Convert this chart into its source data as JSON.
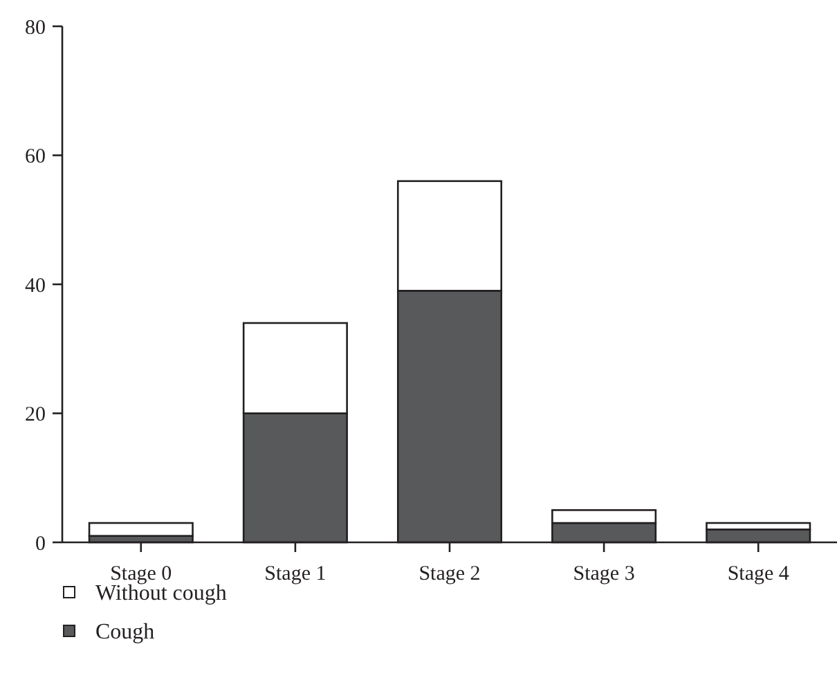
{
  "chart_data": {
    "type": "bar",
    "stacked": true,
    "categories": [
      "Stage 0",
      "Stage 1",
      "Stage 2",
      "Stage 3",
      "Stage 4"
    ],
    "series": [
      {
        "name": "Cough",
        "color": "#58595b",
        "values": [
          1,
          20,
          39,
          3,
          2
        ]
      },
      {
        "name": "Without cough",
        "color": "#ffffff",
        "values": [
          2,
          14,
          17,
          2,
          1
        ]
      }
    ],
    "ylim": [
      0,
      80
    ],
    "yticks": [
      0,
      20,
      40,
      60,
      80
    ],
    "grid": false,
    "legend": "bottom left"
  }
}
